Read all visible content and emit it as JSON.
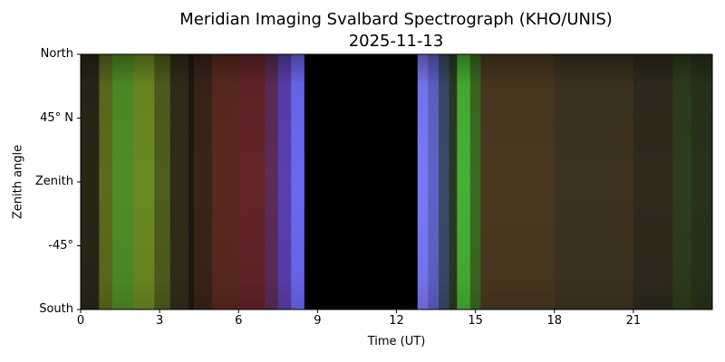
{
  "chart_data": {
    "type": "heatmap",
    "title": "Meridian Imaging Svalbard Spectrograph (KHO/UNIS)",
    "subtitle": "2025-11-13",
    "xlabel": "Time (UT)",
    "ylabel": "Zenith angle",
    "xlim": [
      0,
      24
    ],
    "x_ticks": [
      0,
      3,
      6,
      9,
      12,
      15,
      18,
      21
    ],
    "x_tick_labels": [
      "0",
      "3",
      "6",
      "9",
      "12",
      "15",
      "18",
      "21"
    ],
    "y_tick_labels": [
      "North",
      "45° N",
      "Zenith",
      "-45°",
      "South"
    ],
    "grid": false,
    "no_data_interval_ut": [
      8.5,
      12.8
    ],
    "color_segments": [
      {
        "start": 0.0,
        "end": 0.7,
        "color": "#2a2616"
      },
      {
        "start": 0.7,
        "end": 1.2,
        "color": "#5e6a1e"
      },
      {
        "start": 1.2,
        "end": 2.0,
        "color": "#4f8d26"
      },
      {
        "start": 2.0,
        "end": 2.8,
        "color": "#6b8a22"
      },
      {
        "start": 2.8,
        "end": 3.4,
        "color": "#4f5e1c"
      },
      {
        "start": 3.4,
        "end": 4.1,
        "color": "#332b1a"
      },
      {
        "start": 4.1,
        "end": 4.3,
        "color": "#1e1814"
      },
      {
        "start": 4.3,
        "end": 5.0,
        "color": "#3a2418"
      },
      {
        "start": 5.0,
        "end": 6.0,
        "color": "#5a2a1e"
      },
      {
        "start": 6.0,
        "end": 7.0,
        "color": "#64242a"
      },
      {
        "start": 7.0,
        "end": 7.5,
        "color": "#5b2d58"
      },
      {
        "start": 7.5,
        "end": 8.0,
        "color": "#5a3fb0"
      },
      {
        "start": 8.0,
        "end": 8.5,
        "color": "#6b68f2"
      },
      {
        "start": 8.5,
        "end": 12.8,
        "color": "#000000"
      },
      {
        "start": 12.8,
        "end": 13.2,
        "color": "#7a78f4"
      },
      {
        "start": 13.2,
        "end": 13.6,
        "color": "#5f62c8"
      },
      {
        "start": 13.6,
        "end": 14.0,
        "color": "#3a4a68"
      },
      {
        "start": 14.0,
        "end": 14.3,
        "color": "#2a3a22"
      },
      {
        "start": 14.3,
        "end": 14.8,
        "color": "#46b032"
      },
      {
        "start": 14.8,
        "end": 15.2,
        "color": "#3c6a22"
      },
      {
        "start": 15.2,
        "end": 18.0,
        "color": "#4a3820"
      },
      {
        "start": 18.0,
        "end": 21.0,
        "color": "#3d3320"
      },
      {
        "start": 21.0,
        "end": 22.5,
        "color": "#2f2a1c"
      },
      {
        "start": 22.5,
        "end": 23.2,
        "color": "#2c3e1c"
      },
      {
        "start": 23.2,
        "end": 24.0,
        "color": "#28321a"
      }
    ]
  }
}
